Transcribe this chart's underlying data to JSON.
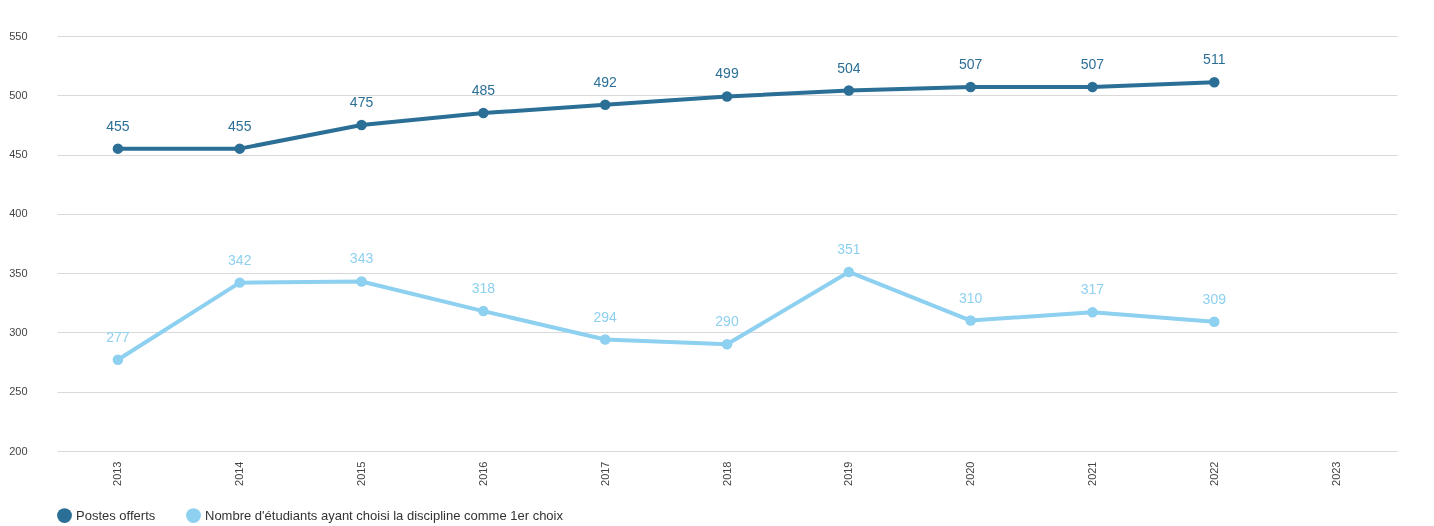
{
  "chart_data": {
    "type": "line",
    "categories": [
      "2013",
      "2014",
      "2015",
      "2016",
      "2017",
      "2018",
      "2019",
      "2020",
      "2021",
      "2022",
      "2023"
    ],
    "series": [
      {
        "name": "Postes offerts",
        "color": "#2b6f96",
        "values": [
          455,
          455,
          475,
          485,
          492,
          499,
          504,
          507,
          507,
          511,
          null
        ]
      },
      {
        "name": "Nombre d'étudiants ayant choisi la discipline comme 1er choix",
        "color": "#8dd0ef",
        "values": [
          277,
          342,
          343,
          318,
          294,
          290,
          351,
          310,
          317,
          309,
          null
        ]
      }
    ],
    "ylim": [
      200,
      550
    ],
    "yticks": [
      200,
      250,
      300,
      350,
      400,
      450,
      500,
      550
    ],
    "grid": "y",
    "legend": "bottom",
    "marker": "circle",
    "line_style": "solid",
    "data_labels": true
  }
}
